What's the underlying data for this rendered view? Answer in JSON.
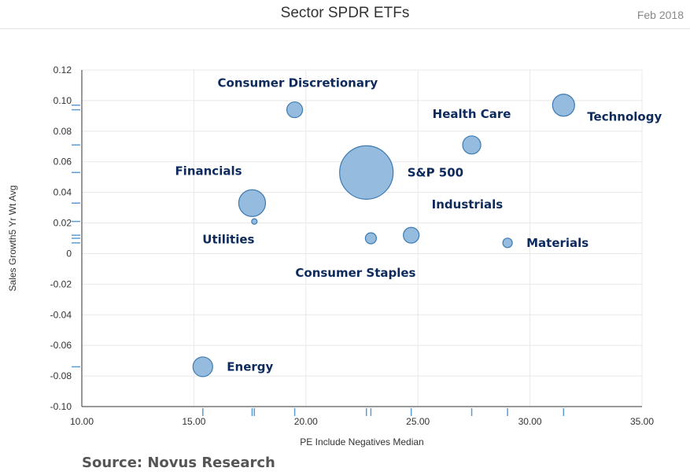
{
  "header": {
    "title": "Sector SPDR ETFs",
    "date": "Feb 2018"
  },
  "footer": {
    "source": "Source: Novus Research"
  },
  "colors": {
    "bubble_fill": "#8fb8dc",
    "bubble_stroke": "#3c7ab0",
    "label": "#0d2a5c",
    "grid": "#e8e8e8",
    "rug": "#5b9bd5"
  },
  "chart_data": {
    "type": "scatter",
    "title": "Sector SPDR ETFs",
    "xlabel": "PE Include Negatives Median",
    "ylabel": "Sales Growth5 Yr Wt Avg",
    "xlim": [
      10,
      35
    ],
    "ylim": [
      -0.1,
      0.12
    ],
    "x_ticks": [
      10,
      15,
      20,
      25,
      30,
      35
    ],
    "x_tick_labels": [
      "10.00",
      "15.00",
      "20.00",
      "25.00",
      "30.00",
      "35.00"
    ],
    "y_ticks": [
      0.12,
      0.1,
      0.08,
      0.06,
      0.04,
      0.02,
      0,
      -0.02,
      -0.04,
      -0.06,
      -0.08,
      -0.1
    ],
    "y_tick_labels": [
      "0.12",
      "0.10",
      "0.08",
      "0.06",
      "0.04",
      "0.02",
      "0",
      "-0.02",
      "-0.04",
      "-0.06",
      "-0.08",
      "-0.10"
    ],
    "grid": true,
    "points": [
      {
        "name": "Consumer Discretionary",
        "x": 19.5,
        "y": 0.094,
        "size": 10,
        "label_pos": "above-left"
      },
      {
        "name": "Technology",
        "x": 31.5,
        "y": 0.097,
        "size": 14,
        "label_pos": "right-below"
      },
      {
        "name": "Health Care",
        "x": 27.4,
        "y": 0.071,
        "size": 11.5,
        "label_pos": "above"
      },
      {
        "name": "S&P 500",
        "x": 22.7,
        "y": 0.053,
        "size": 34,
        "label_pos": "right"
      },
      {
        "name": "Financials",
        "x": 17.6,
        "y": 0.033,
        "size": 17,
        "label_pos": "above-left"
      },
      {
        "name": "Utilities",
        "x": 17.7,
        "y": 0.021,
        "size": 3.5,
        "label_pos": "below-left"
      },
      {
        "name": "Industrials",
        "x": 24.7,
        "y": 0.012,
        "size": 10,
        "label_pos": "above-right"
      },
      {
        "name": "Consumer Staples",
        "x": 22.9,
        "y": 0.01,
        "size": 7,
        "label_pos": "below"
      },
      {
        "name": "Materials",
        "x": 29.0,
        "y": 0.007,
        "size": 6,
        "label_pos": "right"
      },
      {
        "name": "Energy",
        "x": 15.4,
        "y": -0.074,
        "size": 12.5,
        "label_pos": "right"
      }
    ]
  }
}
